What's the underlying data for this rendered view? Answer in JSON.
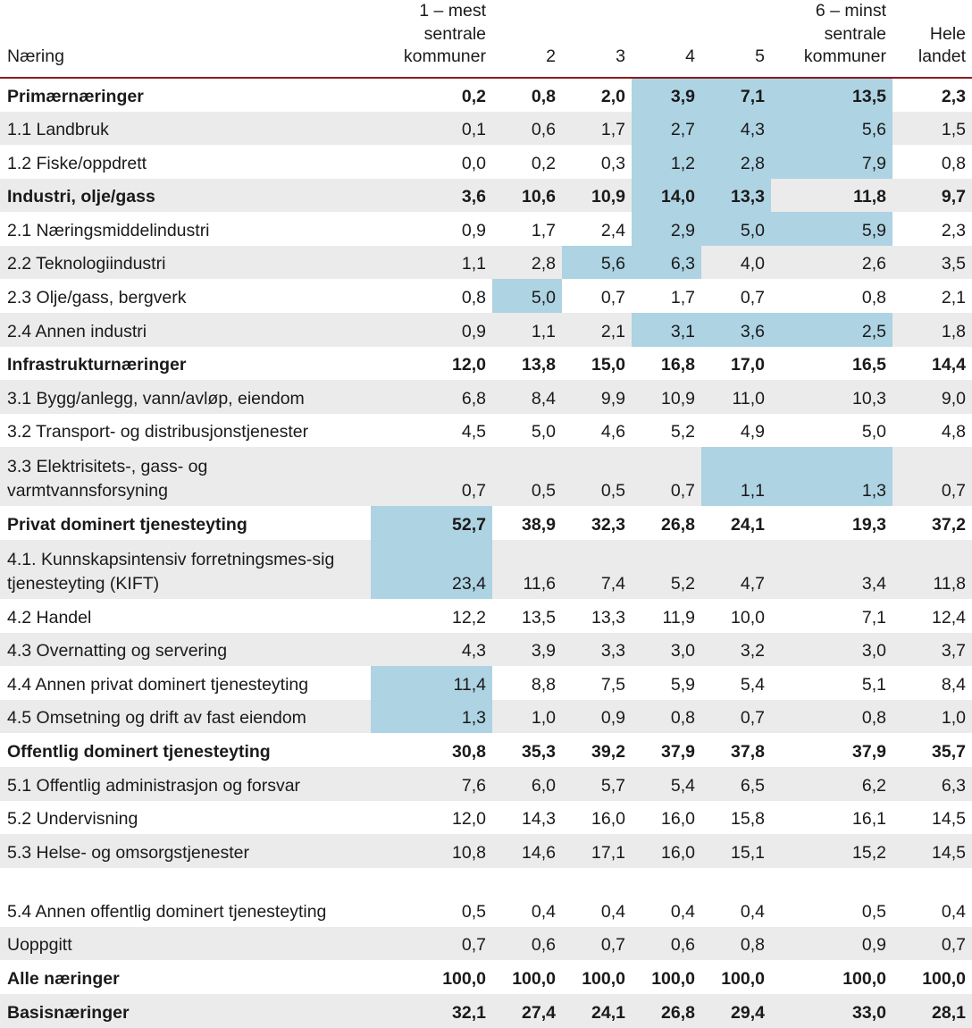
{
  "table": {
    "headers": [
      "Næring",
      "1 – mest sentrale kommuner",
      "2",
      "3",
      "4",
      "5",
      "6 – minst sentrale kommuner",
      "Hele landet"
    ],
    "rows": [
      {
        "label": "Primærnæringer",
        "bold": true,
        "values": [
          "0,2",
          "0,8",
          "2,0",
          "3,9",
          "7,1",
          "13,5",
          "2,3"
        ],
        "highlight": [
          3,
          4,
          5
        ]
      },
      {
        "label": "1.1 Landbruk",
        "values": [
          "0,1",
          "0,6",
          "1,7",
          "2,7",
          "4,3",
          "5,6",
          "1,5"
        ],
        "highlight": [
          3,
          4,
          5
        ]
      },
      {
        "label": "1.2 Fiske/oppdrett",
        "values": [
          "0,0",
          "0,2",
          "0,3",
          "1,2",
          "2,8",
          "7,9",
          "0,8"
        ],
        "highlight": [
          3,
          4,
          5
        ]
      },
      {
        "label": "Industri, olje/gass",
        "bold": true,
        "values": [
          "3,6",
          "10,6",
          "10,9",
          "14,0",
          "13,3",
          "11,8",
          "9,7"
        ],
        "highlight": [
          3,
          4
        ]
      },
      {
        "label": "2.1 Næringsmiddelindustri",
        "values": [
          "0,9",
          "1,7",
          "2,4",
          "2,9",
          "5,0",
          "5,9",
          "2,3"
        ],
        "highlight": [
          3,
          4,
          5
        ]
      },
      {
        "label": "2.2 Teknologiindustri",
        "values": [
          "1,1",
          "2,8",
          "5,6",
          "6,3",
          "4,0",
          "2,6",
          "3,5"
        ],
        "highlight": [
          2,
          3
        ]
      },
      {
        "label": "2.3 Olje/gass, bergverk",
        "values": [
          "0,8",
          "5,0",
          "0,7",
          "1,7",
          "0,7",
          "0,8",
          "2,1"
        ],
        "highlight": [
          1
        ]
      },
      {
        "label": "2.4 Annen industri",
        "values": [
          "0,9",
          "1,1",
          "2,1",
          "3,1",
          "3,6",
          "2,5",
          "1,8"
        ],
        "highlight": [
          3,
          4,
          5
        ]
      },
      {
        "label": "Infrastrukturnæringer",
        "bold": true,
        "values": [
          "12,0",
          "13,8",
          "15,0",
          "16,8",
          "17,0",
          "16,5",
          "14,4"
        ],
        "highlight": []
      },
      {
        "label": "3.1 Bygg/anlegg, vann/avløp, eiendom",
        "values": [
          "6,8",
          "8,4",
          "9,9",
          "10,9",
          "11,0",
          "10,3",
          "9,0"
        ],
        "highlight": []
      },
      {
        "label": "3.2 Transport- og distribusjonstjenester",
        "values": [
          "4,5",
          "5,0",
          "4,6",
          "5,2",
          "4,9",
          "5,0",
          "4,8"
        ],
        "highlight": []
      },
      {
        "label": "3.3 Elektrisitets-, gass- og varmtvannsforsyning",
        "tall": true,
        "values": [
          "0,7",
          "0,5",
          "0,5",
          "0,7",
          "1,1",
          "1,3",
          "0,7"
        ],
        "highlight": [
          4,
          5
        ]
      },
      {
        "label": "Privat dominert tjenesteyting",
        "bold": true,
        "values": [
          "52,7",
          "38,9",
          "32,3",
          "26,8",
          "24,1",
          "19,3",
          "37,2"
        ],
        "highlight": [
          0
        ]
      },
      {
        "label": "4.1. Kunnskapsintensiv forretningsmes-sig tjenesteyting (KIFT)",
        "tall": true,
        "values": [
          "23,4",
          "11,6",
          "7,4",
          "5,2",
          "4,7",
          "3,4",
          "11,8"
        ],
        "highlight": [
          0
        ]
      },
      {
        "label": "4.2 Handel",
        "values": [
          "12,2",
          "13,5",
          "13,3",
          "11,9",
          "10,0",
          "7,1",
          "12,4"
        ],
        "highlight": []
      },
      {
        "label": "4.3 Overnatting og servering",
        "values": [
          "4,3",
          "3,9",
          "3,3",
          "3,0",
          "3,2",
          "3,0",
          "3,7"
        ],
        "highlight": []
      },
      {
        "label": "4.4 Annen privat dominert tjenesteyting",
        "values": [
          "11,4",
          "8,8",
          "7,5",
          "5,9",
          "5,4",
          "5,1",
          "8,4"
        ],
        "highlight": [
          0
        ]
      },
      {
        "label": "4.5 Omsetning og drift av fast eiendom",
        "values": [
          "1,3",
          "1,0",
          "0,9",
          "0,8",
          "0,7",
          "0,8",
          "1,0"
        ],
        "highlight": [
          0
        ]
      },
      {
        "label": "Offentlig dominert tjenesteyting",
        "bold": true,
        "values": [
          "30,8",
          "35,3",
          "39,2",
          "37,9",
          "37,8",
          "37,9",
          "35,7"
        ],
        "highlight": []
      },
      {
        "label": "5.1 Offentlig administrasjon og forsvar",
        "values": [
          "7,6",
          "6,0",
          "5,7",
          "5,4",
          "6,5",
          "6,2",
          "6,3"
        ],
        "highlight": []
      },
      {
        "label": "5.2 Undervisning",
        "values": [
          "12,0",
          "14,3",
          "16,0",
          "16,0",
          "15,8",
          "16,1",
          "14,5"
        ],
        "highlight": []
      },
      {
        "label": "5.3 Helse- og omsorgstjenester",
        "values": [
          "10,8",
          "14,6",
          "17,1",
          "16,0",
          "15,1",
          "15,2",
          "14,5"
        ],
        "highlight": []
      },
      {
        "label": "5.4 Annen offentlig dominert tjenesteyting",
        "tall": true,
        "values": [
          "0,5",
          "0,4",
          "0,4",
          "0,4",
          "0,4",
          "0,5",
          "0,4"
        ],
        "highlight": []
      },
      {
        "label": "Uoppgitt",
        "values": [
          "0,7",
          "0,6",
          "0,7",
          "0,6",
          "0,8",
          "0,9",
          "0,7"
        ],
        "highlight": []
      },
      {
        "label": "Alle næringer",
        "bold": true,
        "values": [
          "100,0",
          "100,0",
          "100,0",
          "100,0",
          "100,0",
          "100,0",
          "100,0"
        ],
        "highlight": []
      },
      {
        "label": "Basisnæringer",
        "bold": true,
        "values": [
          "32,1",
          "27,4",
          "24,1",
          "26,8",
          "29,4",
          "33,0",
          "28,1"
        ],
        "highlight": []
      }
    ],
    "colors": {
      "highlight": "#aed3e3",
      "shade": "#ebebeb",
      "header_rule": "#8b1c1c"
    }
  }
}
